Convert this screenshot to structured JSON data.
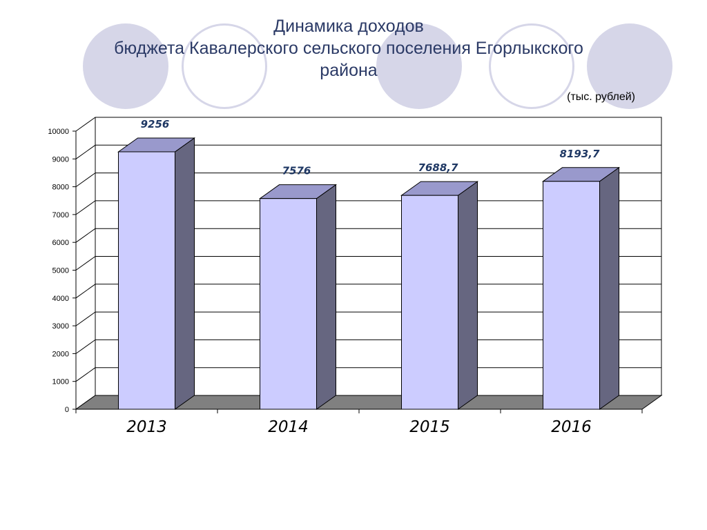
{
  "header": {
    "title_lines": [
      "Динамика доходов",
      "бюджета Кавалерского сельского поселения Егорлыкского",
      "района"
    ],
    "units": "(тыс. рублей)"
  },
  "colors": {
    "bar_front": "#ccccff",
    "bar_top": "#9999cc",
    "bar_side": "#666680",
    "floor": "#808080",
    "deco_circle": "#d6d6e8",
    "label": "#1f3864",
    "title": "#2b3a66"
  },
  "chart_data": {
    "type": "bar",
    "categories": [
      "2013",
      "2014",
      "2015",
      "2016"
    ],
    "values": [
      9256,
      7576,
      7688.7,
      8193.7
    ],
    "value_labels": [
      "9256",
      "7576",
      "7688,7",
      "8193,7"
    ],
    "ylim": [
      0,
      10000
    ],
    "yticks": [
      0,
      1000,
      2000,
      3000,
      4000,
      5000,
      6000,
      7000,
      8000,
      9000,
      10000
    ],
    "grid": true,
    "style": "3d-column"
  }
}
